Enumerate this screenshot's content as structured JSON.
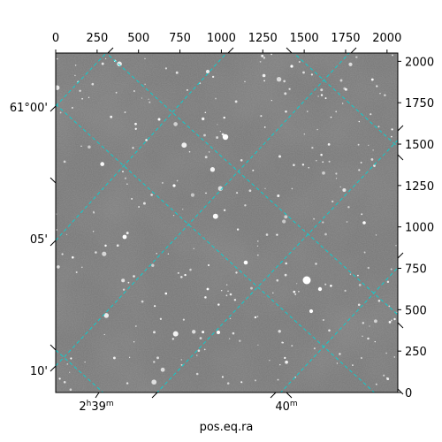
{
  "figure": {
    "colors": {
      "background": "#ffffff",
      "sky": "#7a7a7a",
      "sky_dark": "#5e5e5e",
      "star": "#ffffff",
      "grid": "#00d5d5",
      "frame": "#000000"
    },
    "pixel_axes": {
      "top_ticks": [
        "0",
        "250",
        "500",
        "750",
        "1000",
        "1250",
        "1500",
        "1750",
        "2000"
      ],
      "right_ticks": [
        "0",
        "250",
        "500",
        "750",
        "1000",
        "1250",
        "1500",
        "1750",
        "2000"
      ]
    },
    "world_axes": {
      "dec_ticks": [
        "61°00'",
        "05'",
        "10'"
      ],
      "ra_ticks": [
        {
          "h": "2",
          "hu": "h",
          "m": "39",
          "mu": "m"
        },
        {
          "h": "",
          "hu": "",
          "m": "40",
          "mu": "m"
        }
      ],
      "xlabel": "pos.eq.ra"
    },
    "grid": {
      "style": "dashed",
      "visible": true
    }
  }
}
